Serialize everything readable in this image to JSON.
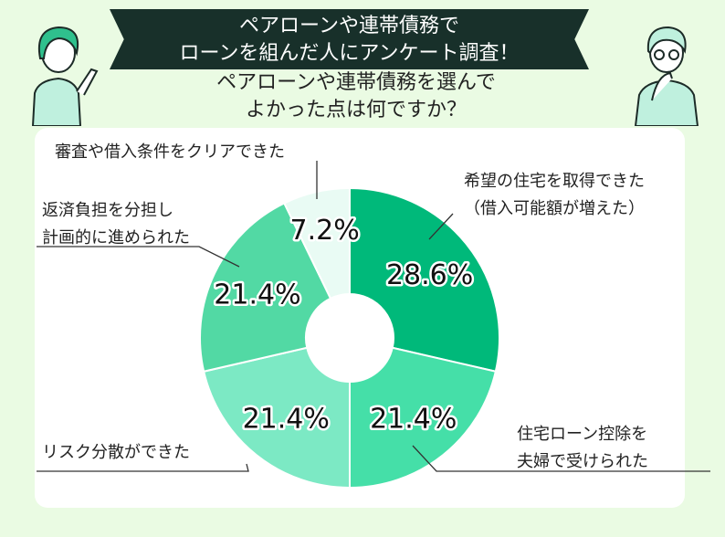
{
  "header": {
    "title_line1": "ペアローンや連帯債務で",
    "title_line2": "ローンを組んだ人にアンケート調査！",
    "subtitle_line1": "ペアローンや連帯債務を選んで",
    "subtitle_line2": "よかった点は何ですか？"
  },
  "chart_data": {
    "type": "pie",
    "donut": true,
    "categories": [
      [
        "希望の住宅を取得できた",
        "（借入可能額が増えた）"
      ],
      [
        "住宅ローン控除を",
        "夫婦で受けられた"
      ],
      [
        "リスク分散ができた"
      ],
      [
        "返済負担を分担し",
        "計画的に進められた"
      ],
      [
        "審査や借入条件をクリアできた"
      ]
    ],
    "values": [
      28.6,
      21.4,
      21.4,
      21.4,
      7.2
    ],
    "value_labels": [
      "28.6%",
      "21.4%",
      "21.4%",
      "21.4%",
      "7.2%"
    ],
    "colors": [
      "#00b97a",
      "#45dfa8",
      "#7ce9c4",
      "#52d9a4",
      "#e9fbf4"
    ]
  }
}
